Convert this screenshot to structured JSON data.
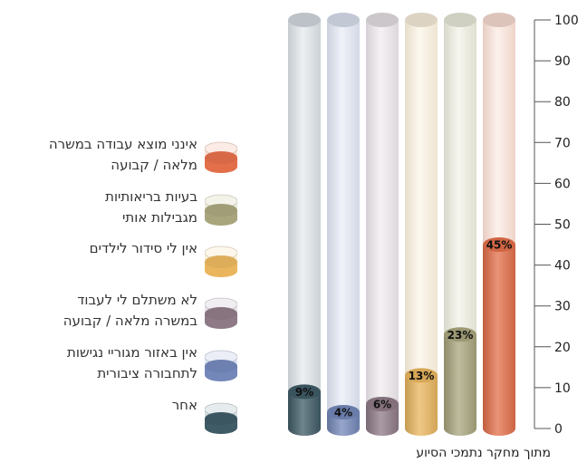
{
  "chart_data": {
    "type": "bar",
    "title": "",
    "xlabel": "",
    "ylabel": "",
    "ylim": [
      0,
      100
    ],
    "yticks": [
      "0",
      "10",
      "20",
      "30",
      "40",
      "50",
      "60",
      "70",
      "80",
      "90",
      "100"
    ],
    "categories": [
      "אחר",
      "אין באזור מגוריי נגישות\nלתחבורה ציבורית",
      "לא משתלם לי לעבוד\nבמשרה מלאה / קבועה",
      "אין לי סידור לילדים",
      "בעיות בריאותיות\nמגבילות אותי",
      "אינני מוצא עבודה במשרה\nמלאה / קבועה"
    ],
    "values": [
      9,
      4,
      6,
      13,
      23,
      45
    ],
    "value_labels": [
      "9%",
      "4%",
      "6%",
      "13%",
      "23%",
      "45%"
    ],
    "colors": [
      "#3f5b66",
      "#7387b8",
      "#8e7a86",
      "#e9b65e",
      "#a8a57d",
      "#e36f4a"
    ],
    "track_colors": [
      "#d6dde2",
      "#dde3f1",
      "#e8e2e7",
      "#fbf0dc",
      "#ebebdc",
      "#fbdfd4"
    ],
    "legend_placement": "left",
    "legend_order": [
      5,
      4,
      3,
      2,
      1,
      0
    ],
    "grid": false
  },
  "source_note": "מתוך מחקר נתמכי הסיוע"
}
